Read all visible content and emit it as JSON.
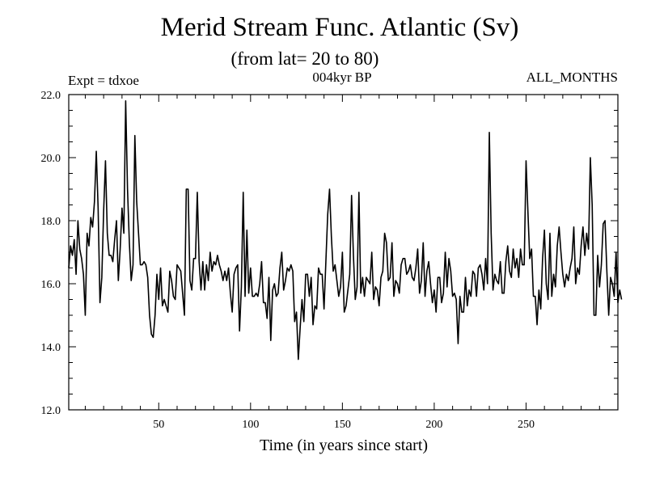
{
  "header": {
    "title": "Merid Stream Func. Atlantic (Sv)",
    "subtitle": "(from lat= 20 to 80)",
    "left_label": "Expt = tdxoe",
    "center_label": "004kyr BP",
    "right_label": "ALL_MONTHS"
  },
  "chart_data": {
    "type": "line",
    "title": "Merid Stream Func. Atlantic (Sv)",
    "subtitle": "(from lat= 20 to 80)",
    "xlabel": "Time (in years since start)",
    "ylabel": "",
    "xlim": [
      1,
      300
    ],
    "ylim": [
      12.0,
      22.0
    ],
    "x_ticks": [
      50,
      100,
      150,
      200,
      250
    ],
    "y_ticks": [
      "12.0",
      "14.0",
      "16.0",
      "18.0",
      "20.0",
      "22.0"
    ],
    "grid": false,
    "series": [
      {
        "name": "",
        "color": "#000000",
        "x_start": 1,
        "x_step": 1,
        "values": [
          16.5,
          17.2,
          16.9,
          17.4,
          16.3,
          18.0,
          17.1,
          16.8,
          16.3,
          15.0,
          17.6,
          17.2,
          18.1,
          17.8,
          18.6,
          20.2,
          18.4,
          15.4,
          16.2,
          18.3,
          19.9,
          17.6,
          16.9,
          16.9,
          16.7,
          17.4,
          18.0,
          16.1,
          17.1,
          18.4,
          17.6,
          21.8,
          19.0,
          17.3,
          16.1,
          16.6,
          20.7,
          18.6,
          17.6,
          16.6,
          16.6,
          16.7,
          16.6,
          16.2,
          15.0,
          14.4,
          14.3,
          15.0,
          16.3,
          15.5,
          16.5,
          15.3,
          15.5,
          15.3,
          15.1,
          16.4,
          16.1,
          15.6,
          15.5,
          16.6,
          16.5,
          16.4,
          15.7,
          15.0,
          19.0,
          19.0,
          16.1,
          15.8,
          16.8,
          16.8,
          18.9,
          16.7,
          15.8,
          16.7,
          15.8,
          16.6,
          16.1,
          17.0,
          16.4,
          16.7,
          16.6,
          16.9,
          16.6,
          16.4,
          16.1,
          16.4,
          16.1,
          16.5,
          15.7,
          15.1,
          16.3,
          16.5,
          16.6,
          14.5,
          15.9,
          18.9,
          15.6,
          17.7,
          15.7,
          16.5,
          15.6,
          15.6,
          15.7,
          15.6,
          16.0,
          16.7,
          15.4,
          15.4,
          14.9,
          16.2,
          14.2,
          15.8,
          16.0,
          15.6,
          15.7,
          16.5,
          17.0,
          15.8,
          16.1,
          16.5,
          16.4,
          16.6,
          16.4,
          14.8,
          15.1,
          13.6,
          14.6,
          15.5,
          14.8,
          16.3,
          16.3,
          15.6,
          16.2,
          14.7,
          15.3,
          15.2,
          16.5,
          16.3,
          16.3,
          15.2,
          16.7,
          18.2,
          19.0,
          17.5,
          16.4,
          16.6,
          16.1,
          15.6,
          15.9,
          17.0,
          15.1,
          15.3,
          15.8,
          16.3,
          18.8,
          16.9,
          15.5,
          15.9,
          18.9,
          15.7,
          16.2,
          15.6,
          16.2,
          16.1,
          16.0,
          17.0,
          15.5,
          15.9,
          15.8,
          15.3,
          16.2,
          16.4,
          17.6,
          17.3,
          16.1,
          16.2,
          17.3,
          15.6,
          16.1,
          16.0,
          15.7,
          16.6,
          16.8,
          16.8,
          16.3,
          16.4,
          16.6,
          16.2,
          16.1,
          16.5,
          17.1,
          15.7,
          16.1,
          17.3,
          15.6,
          16.4,
          16.7,
          16.0,
          15.4,
          15.8,
          15.1,
          16.2,
          16.2,
          15.4,
          15.7,
          17.0,
          15.9,
          16.8,
          16.4,
          15.6,
          15.7,
          15.5,
          14.1,
          15.6,
          15.1,
          15.1,
          16.2,
          15.3,
          15.8,
          15.6,
          16.4,
          16.3,
          15.6,
          16.5,
          16.6,
          16.3,
          15.8,
          16.8,
          16.0,
          20.8,
          17.6,
          15.8,
          16.3,
          16.1,
          16.0,
          16.7,
          15.7,
          15.7,
          16.7,
          17.2,
          16.4,
          16.2,
          17.1,
          16.5,
          16.8,
          16.2,
          17.1,
          16.6,
          16.6,
          19.9,
          18.3,
          16.8,
          17.1,
          15.6,
          15.6,
          14.7,
          15.8,
          15.2,
          16.8,
          17.7,
          16.0,
          15.5,
          17.6,
          15.6,
          16.3,
          15.9,
          17.2,
          17.8,
          17.0,
          16.3,
          15.9,
          16.3,
          16.1,
          16.5,
          16.8,
          17.8,
          16.0,
          16.5,
          16.3,
          17.2,
          17.8,
          16.9,
          17.6,
          17.1,
          20.0,
          18.5,
          15.0,
          15.0,
          16.9,
          15.9,
          16.6,
          17.9,
          18.0,
          16.4,
          15.0,
          16.2,
          16.0,
          15.6,
          17.0,
          15.4,
          15.8,
          15.5
        ]
      }
    ]
  }
}
